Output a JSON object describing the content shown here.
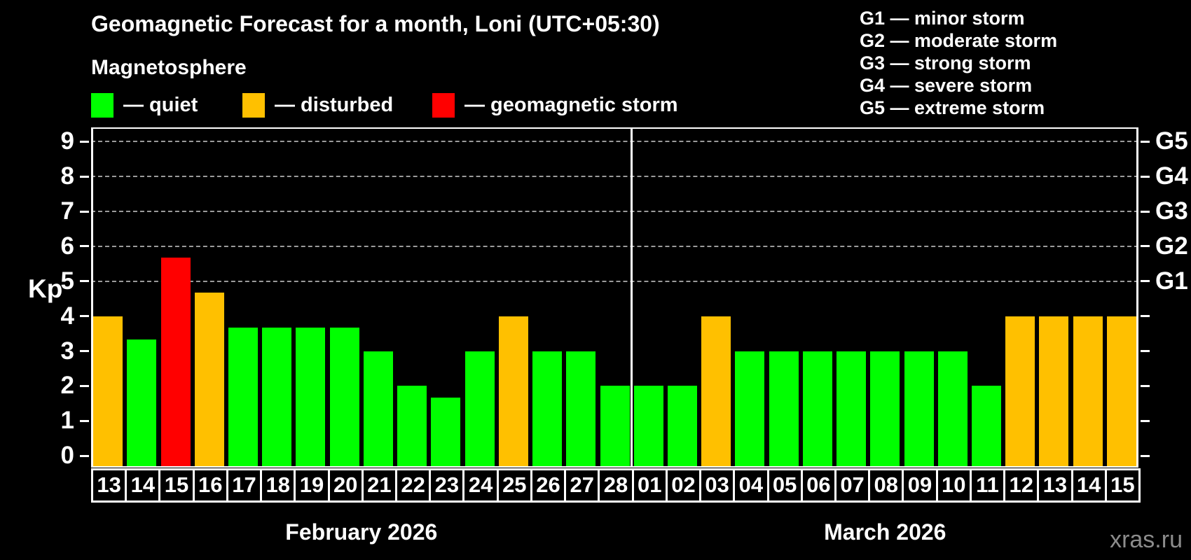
{
  "header": {
    "title": "Geomagnetic Forecast for a month, Loni (UTC+05:30)",
    "subtitle": "Magnetosphere"
  },
  "legend": {
    "items": [
      {
        "key": "quiet",
        "label": "— quiet"
      },
      {
        "key": "disturbed",
        "label": "— disturbed"
      },
      {
        "key": "storm",
        "label": "— geomagnetic storm"
      }
    ]
  },
  "storm_scale_legend": [
    "G1 — minor storm",
    "G2 — moderate storm",
    "G3 — strong storm",
    "G4 — severe storm",
    "G5 — extreme storm"
  ],
  "colors": {
    "quiet": "#00ff00",
    "disturbed": "#ffc000",
    "storm": "#ff0000",
    "background": "#000000",
    "axis": "#ffffff",
    "gridline": "#9a9a9a",
    "watermark": "#8c8c8c"
  },
  "chart_data": {
    "type": "bar",
    "title": "Geomagnetic Forecast for a month, Loni (UTC+05:30)",
    "ylabel": "Kp",
    "ylim": [
      -0.34,
      9.41
    ],
    "y_ticks": [
      0,
      1,
      2,
      3,
      4,
      5,
      6,
      7,
      8,
      9
    ],
    "gridlines_at": [
      5,
      6,
      7,
      8,
      9
    ],
    "grid": "dashed-horizontal",
    "right_axis_labels": [
      {
        "kp": 5,
        "label": "G1"
      },
      {
        "kp": 6,
        "label": "G2"
      },
      {
        "kp": 7,
        "label": "G3"
      },
      {
        "kp": 8,
        "label": "G4"
      },
      {
        "kp": 9,
        "label": "G5"
      }
    ],
    "months": [
      {
        "label": "February 2026",
        "days": [
          {
            "date": "13",
            "kp": 4.0,
            "status": "disturbed"
          },
          {
            "date": "14",
            "kp": 3.33,
            "status": "quiet"
          },
          {
            "date": "15",
            "kp": 5.67,
            "status": "storm"
          },
          {
            "date": "16",
            "kp": 4.67,
            "status": "disturbed"
          },
          {
            "date": "17",
            "kp": 3.67,
            "status": "quiet"
          },
          {
            "date": "18",
            "kp": 3.67,
            "status": "quiet"
          },
          {
            "date": "19",
            "kp": 3.67,
            "status": "quiet"
          },
          {
            "date": "20",
            "kp": 3.67,
            "status": "quiet"
          },
          {
            "date": "21",
            "kp": 3.0,
            "status": "quiet"
          },
          {
            "date": "22",
            "kp": 2.0,
            "status": "quiet"
          },
          {
            "date": "23",
            "kp": 1.67,
            "status": "quiet"
          },
          {
            "date": "24",
            "kp": 3.0,
            "status": "quiet"
          },
          {
            "date": "25",
            "kp": 4.0,
            "status": "disturbed"
          },
          {
            "date": "26",
            "kp": 3.0,
            "status": "quiet"
          },
          {
            "date": "27",
            "kp": 3.0,
            "status": "quiet"
          },
          {
            "date": "28",
            "kp": 2.0,
            "status": "quiet"
          }
        ]
      },
      {
        "label": "March 2026",
        "days": [
          {
            "date": "01",
            "kp": 2.0,
            "status": "quiet"
          },
          {
            "date": "02",
            "kp": 2.0,
            "status": "quiet"
          },
          {
            "date": "03",
            "kp": 4.0,
            "status": "disturbed"
          },
          {
            "date": "04",
            "kp": 3.0,
            "status": "quiet"
          },
          {
            "date": "05",
            "kp": 3.0,
            "status": "quiet"
          },
          {
            "date": "06",
            "kp": 3.0,
            "status": "quiet"
          },
          {
            "date": "07",
            "kp": 3.0,
            "status": "quiet"
          },
          {
            "date": "08",
            "kp": 3.0,
            "status": "quiet"
          },
          {
            "date": "09",
            "kp": 3.0,
            "status": "quiet"
          },
          {
            "date": "10",
            "kp": 3.0,
            "status": "quiet"
          },
          {
            "date": "11",
            "kp": 2.0,
            "status": "quiet"
          },
          {
            "date": "12",
            "kp": 4.0,
            "status": "disturbed"
          },
          {
            "date": "13",
            "kp": 4.0,
            "status": "disturbed"
          },
          {
            "date": "14",
            "kp": 4.0,
            "status": "disturbed"
          },
          {
            "date": "15",
            "kp": 4.0,
            "status": "disturbed"
          }
        ]
      }
    ]
  },
  "watermark": "xras.ru"
}
